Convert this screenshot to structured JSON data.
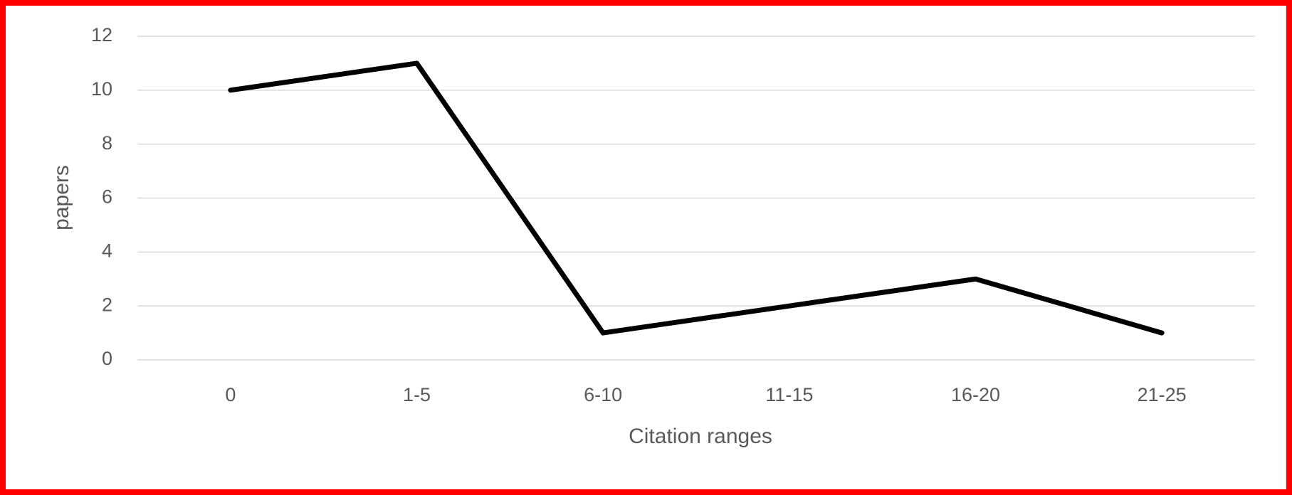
{
  "chart_data": {
    "type": "line",
    "xlabel": "Citation ranges",
    "ylabel": "papers",
    "categories": [
      "0",
      "1-5",
      "6-10",
      "11-15",
      "16-20",
      "21-25"
    ],
    "values": [
      10,
      11,
      1,
      2,
      3,
      1
    ],
    "color": "#000000",
    "ylim": [
      0,
      12
    ],
    "yticks": [
      0,
      2,
      4,
      6,
      8,
      10,
      12
    ],
    "grid": true
  }
}
